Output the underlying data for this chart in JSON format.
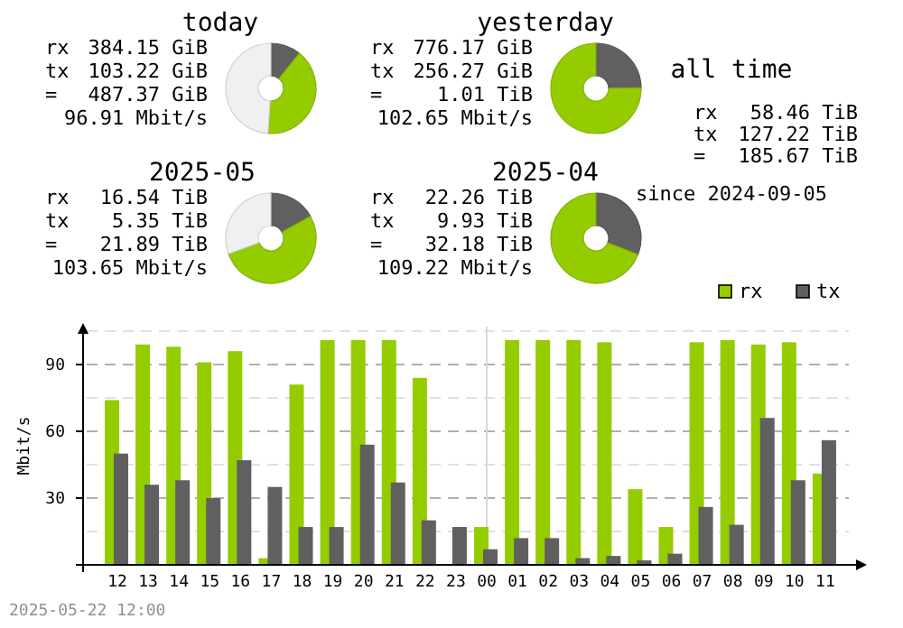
{
  "chart_data": [
    {
      "type": "donut",
      "title": "today",
      "categories": [
        null,
        null,
        null
      ],
      "values": [
        10.8,
        40.2,
        49.0
      ],
      "colors": [
        "#606060",
        "#94cc00",
        "#f0f0f0"
      ],
      "annotations": [
        "rx 384.15 GiB",
        "tx 103.22 GiB",
        "= 487.37 GiB",
        "96.91 Mbit/s"
      ]
    },
    {
      "type": "donut",
      "title": "yesterday",
      "categories": [
        null,
        null
      ],
      "values": [
        24.8,
        75.2
      ],
      "colors": [
        "#606060",
        "#94cc00"
      ],
      "annotations": [
        "rx 776.17 GiB",
        "tx 256.27 GiB",
        "= 1.01 TiB",
        "102.65 Mbit/s"
      ]
    },
    {
      "type": "donut",
      "title": "2025-05",
      "categories": [
        null,
        null,
        null
      ],
      "values": [
        16.9,
        52.5,
        30.6
      ],
      "colors": [
        "#606060",
        "#94cc00",
        "#f0f0f0"
      ],
      "annotations": [
        "rx 16.54 TiB",
        "tx 5.35 TiB",
        "= 21.89 TiB",
        "103.65 Mbit/s"
      ]
    },
    {
      "type": "donut",
      "title": "2025-04",
      "categories": [
        null,
        null
      ],
      "values": [
        30.9,
        69.1
      ],
      "colors": [
        "#606060",
        "#94cc00"
      ],
      "annotations": [
        "rx 22.26 TiB",
        "tx 9.93 TiB",
        "= 32.18 TiB",
        "109.22 Mbit/s"
      ]
    },
    {
      "type": "other",
      "title": "all time",
      "annotations": [
        "rx 58.46 TiB",
        "tx 127.22 TiB",
        "= 185.67 TiB",
        "since 2024-09-05"
      ]
    },
    {
      "type": "bar",
      "ylabel": "Mbit/s",
      "categories": [
        "12",
        "13",
        "14",
        "15",
        "16",
        "17",
        "18",
        "19",
        "20",
        "21",
        "22",
        "23",
        "00",
        "01",
        "02",
        "03",
        "04",
        "05",
        "06",
        "07",
        "08",
        "09",
        "10",
        "11"
      ],
      "series": [
        {
          "name": "rx",
          "color": "#94cc00",
          "values": [
            74,
            99,
            98,
            91,
            96,
            3,
            81,
            101,
            101,
            101,
            84,
            0,
            17,
            101,
            101,
            101,
            100,
            34,
            17,
            100,
            101,
            99,
            100,
            41
          ]
        },
        {
          "name": "tx",
          "color": "#606060",
          "values": [
            50,
            36,
            38,
            30,
            47,
            35,
            17,
            17,
            54,
            37,
            20,
            17,
            7,
            12,
            12,
            3,
            4,
            2,
            5,
            26,
            18,
            66,
            38,
            56
          ]
        }
      ],
      "ylim": [
        0,
        107
      ],
      "yticks": [
        {
          "value": 15,
          "label": null
        },
        30,
        {
          "value": 45,
          "label": null
        },
        60,
        {
          "value": 75,
          "label": null
        },
        90,
        {
          "value": 105,
          "label": null
        }
      ],
      "grid": "y",
      "legend": "top right",
      "ref_lines": [
        {
          "axis": "x",
          "value": "00",
          "color": "#d8d8d8"
        }
      ],
      "annotations": [
        "2025-05-22 12:00"
      ]
    }
  ]
}
